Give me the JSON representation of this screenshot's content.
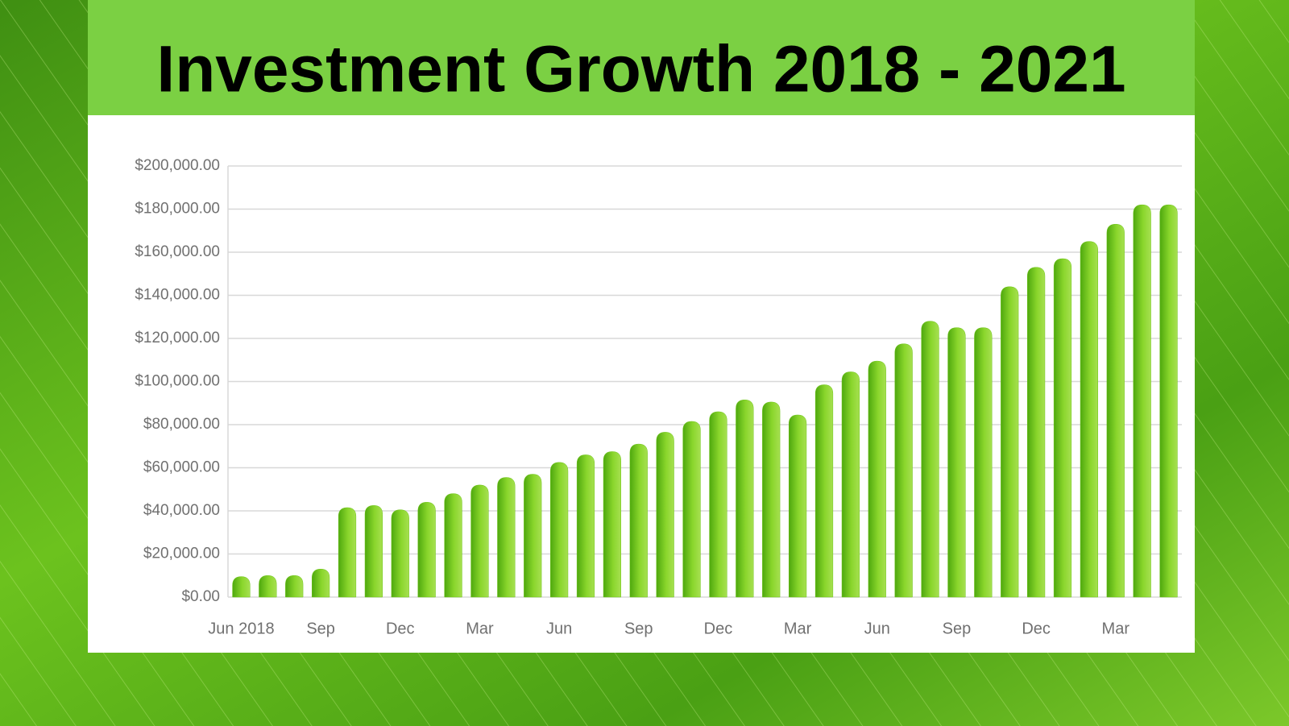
{
  "chart_data": {
    "type": "bar",
    "title": "Investment Growth 2018 - 2021",
    "categories": [
      "Jun 2018",
      null,
      null,
      "Sep",
      null,
      null,
      "Dec",
      null,
      null,
      "Mar",
      null,
      null,
      "Jun",
      null,
      null,
      "Sep",
      null,
      null,
      "Dec",
      null,
      null,
      "Mar",
      null,
      null,
      "Jun",
      null,
      null,
      "Sep",
      null,
      null,
      "Dec",
      null,
      null,
      "Mar",
      null,
      null
    ],
    "values": [
      9500,
      10000,
      10000,
      13000,
      41500,
      42500,
      40500,
      44000,
      48000,
      52000,
      55500,
      57000,
      62500,
      66000,
      67500,
      71000,
      76500,
      81500,
      86000,
      91500,
      90500,
      84500,
      98500,
      104500,
      109500,
      117500,
      128000,
      125000,
      125000,
      144000,
      153000,
      157000,
      165000,
      173000,
      182000,
      182000
    ],
    "color": "#6cc417",
    "ylim": [
      0,
      200000
    ],
    "yticks": [
      {
        "value": 0,
        "label": "$0.00"
      },
      {
        "value": 20000,
        "label": "$20,000.00"
      },
      {
        "value": 40000,
        "label": "$40,000.00"
      },
      {
        "value": 60000,
        "label": "$60,000.00"
      },
      {
        "value": 80000,
        "label": "$80,000.00"
      },
      {
        "value": 100000,
        "label": "$100,000.00"
      },
      {
        "value": 120000,
        "label": "$120,000.00"
      },
      {
        "value": 140000,
        "label": "$140,000.00"
      },
      {
        "value": 160000,
        "label": "$160,000.00"
      },
      {
        "value": 180000,
        "label": "$180,000.00"
      },
      {
        "value": 200000,
        "label": "$200,000.00"
      }
    ],
    "grid": true
  }
}
